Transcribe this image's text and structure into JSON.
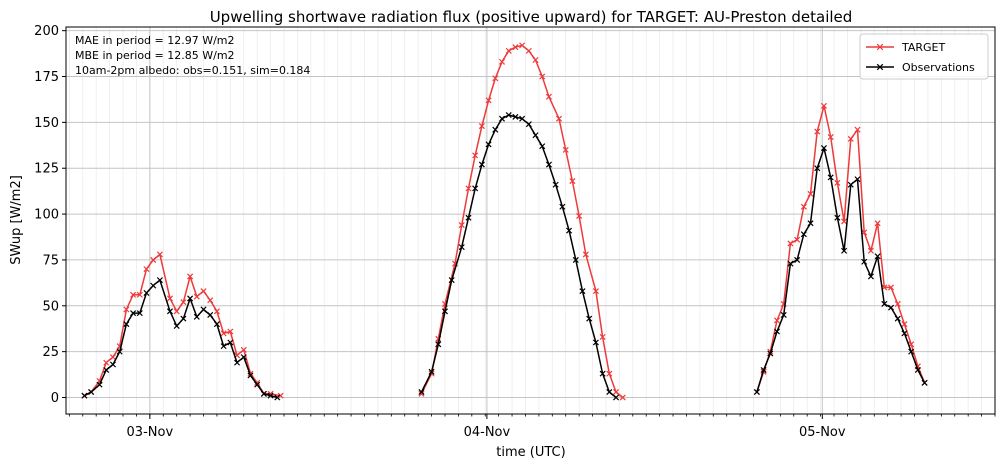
{
  "chart_data": {
    "type": "line",
    "title": "Upwelling shortwave radiation flux (positive upward) for TARGET: AU-Preston detailed",
    "xlabel": "time (UTC)",
    "ylabel": "SWup [W/m2]",
    "ylim": [
      -9,
      202
    ],
    "xlim_hours": [
      -25,
      252
    ],
    "yticks": [
      0,
      25,
      50,
      75,
      100,
      125,
      150,
      175,
      200
    ],
    "xticks": [
      {
        "hour": 0,
        "label": "03-Nov"
      },
      {
        "hour": 100.5,
        "label": "04-Nov"
      },
      {
        "hour": 200.5,
        "label": "05-Nov"
      }
    ],
    "x_unit_note": "x values are hours offset from the 03-Nov tick (axis frame units)",
    "annotations": [
      "MAE in period = 12.97 W/m2",
      "MBE in period = 12.85 W/m2",
      "10am-2pm albedo: obs=0.151, sim=0.184"
    ],
    "legend_position": "top-right",
    "series": [
      {
        "name": "TARGET",
        "color": "#ee3a3a",
        "marker": "x",
        "segments": [
          [
            [
              -19.5,
              1
            ],
            [
              -17.5,
              3
            ],
            [
              -15,
              9
            ],
            [
              -13,
              19
            ],
            [
              -11,
              22
            ],
            [
              -9,
              28
            ],
            [
              -7,
              48
            ],
            [
              -5,
              56
            ],
            [
              -3,
              56
            ],
            [
              -1,
              70
            ],
            [
              1,
              75
            ],
            [
              3,
              78
            ],
            [
              6,
              54
            ],
            [
              8,
              47
            ],
            [
              10,
              52
            ],
            [
              12,
              66
            ],
            [
              14,
              55
            ],
            [
              16,
              58
            ],
            [
              18,
              53
            ],
            [
              20,
              47
            ],
            [
              22,
              35
            ],
            [
              24,
              36
            ],
            [
              26,
              23
            ],
            [
              28,
              26
            ],
            [
              30,
              13
            ],
            [
              32,
              8
            ],
            [
              34,
              2
            ],
            [
              36,
              2
            ],
            [
              39,
              1
            ]
          ],
          [
            [
              81,
              2
            ],
            [
              84,
              13
            ],
            [
              86,
              32
            ],
            [
              88,
              51
            ],
            [
              91,
              73
            ],
            [
              93,
              94
            ],
            [
              95,
              114
            ],
            [
              97,
              132
            ],
            [
              99,
              148
            ],
            [
              101,
              162
            ],
            [
              103,
              174
            ],
            [
              105,
              183
            ],
            [
              107,
              189
            ],
            [
              109,
              191
            ],
            [
              111,
              192
            ],
            [
              113,
              189
            ],
            [
              115,
              184
            ],
            [
              117,
              175
            ],
            [
              119,
              164
            ],
            [
              122,
              152
            ],
            [
              124,
              135
            ],
            [
              126,
              118
            ],
            [
              128,
              99
            ],
            [
              130,
              78
            ],
            [
              133,
              58
            ],
            [
              135,
              33
            ],
            [
              137,
              13
            ],
            [
              139,
              3
            ],
            [
              141,
              0
            ]
          ],
          [
            [
              181,
              3
            ],
            [
              183,
              14
            ],
            [
              185,
              25
            ],
            [
              187,
              42
            ],
            [
              189,
              51
            ],
            [
              191,
              84
            ],
            [
              193,
              86
            ],
            [
              195,
              104
            ],
            [
              197,
              111
            ],
            [
              199,
              145
            ],
            [
              201,
              159
            ],
            [
              203,
              142
            ],
            [
              205,
              117
            ],
            [
              207,
              96
            ],
            [
              209,
              141
            ],
            [
              211,
              146
            ],
            [
              213,
              90
            ],
            [
              215,
              80
            ],
            [
              217,
              95
            ],
            [
              219,
              60
            ],
            [
              221,
              60
            ],
            [
              223,
              51
            ],
            [
              225,
              40
            ],
            [
              227,
              29
            ],
            [
              229,
              17
            ],
            [
              231,
              8
            ]
          ]
        ]
      },
      {
        "name": "Observations",
        "color": "#000000",
        "marker": "x",
        "segments": [
          [
            [
              -19.5,
              1
            ],
            [
              -17.5,
              3
            ],
            [
              -15,
              7
            ],
            [
              -13,
              15
            ],
            [
              -11,
              18
            ],
            [
              -9,
              25
            ],
            [
              -7,
              40
            ],
            [
              -5,
              46
            ],
            [
              -3,
              46
            ],
            [
              -1,
              57
            ],
            [
              1,
              61
            ],
            [
              3,
              64
            ],
            [
              6,
              47
            ],
            [
              8,
              39
            ],
            [
              10,
              43
            ],
            [
              12,
              54
            ],
            [
              14,
              44
            ],
            [
              16,
              48
            ],
            [
              18,
              45
            ],
            [
              20,
              40
            ],
            [
              22,
              28
            ],
            [
              24,
              30
            ],
            [
              26,
              19
            ],
            [
              28,
              22
            ],
            [
              30,
              12
            ],
            [
              32,
              7
            ],
            [
              34,
              2
            ],
            [
              36,
              1
            ],
            [
              38,
              0
            ]
          ],
          [
            [
              81,
              3
            ],
            [
              84,
              14
            ],
            [
              86,
              29
            ],
            [
              88,
              47
            ],
            [
              90,
              64
            ],
            [
              93,
              82
            ],
            [
              95,
              98
            ],
            [
              97,
              114
            ],
            [
              99,
              127
            ],
            [
              101,
              138
            ],
            [
              103,
              146
            ],
            [
              105,
              152
            ],
            [
              107,
              154
            ],
            [
              109,
              153
            ],
            [
              111,
              152
            ],
            [
              113,
              149
            ],
            [
              115,
              143
            ],
            [
              117,
              137
            ],
            [
              119,
              127
            ],
            [
              121,
              116
            ],
            [
              123,
              104
            ],
            [
              125,
              91
            ],
            [
              127,
              75
            ],
            [
              129,
              58
            ],
            [
              131,
              43
            ],
            [
              133,
              30
            ],
            [
              135,
              13
            ],
            [
              137,
              3
            ],
            [
              139,
              0
            ]
          ],
          [
            [
              181,
              3
            ],
            [
              183,
              15
            ],
            [
              185,
              24
            ],
            [
              187,
              36
            ],
            [
              189,
              45
            ],
            [
              191,
              73
            ],
            [
              193,
              75
            ],
            [
              195,
              89
            ],
            [
              197,
              95
            ],
            [
              199,
              125
            ],
            [
              201,
              136
            ],
            [
              203,
              120
            ],
            [
              205,
              98
            ],
            [
              207,
              80
            ],
            [
              209,
              116
            ],
            [
              211,
              119
            ],
            [
              213,
              74
            ],
            [
              215,
              66
            ],
            [
              217,
              77
            ],
            [
              219,
              51
            ],
            [
              221,
              49
            ],
            [
              223,
              43
            ],
            [
              225,
              35
            ],
            [
              227,
              25
            ],
            [
              229,
              15
            ],
            [
              231,
              8
            ]
          ]
        ]
      }
    ]
  }
}
